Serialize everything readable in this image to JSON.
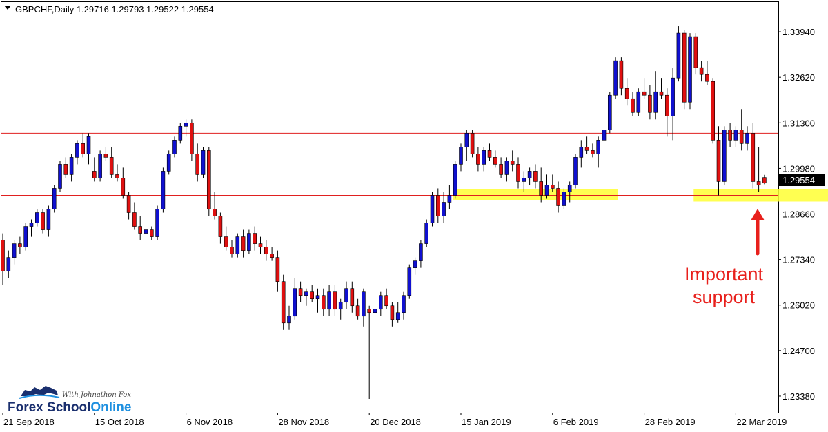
{
  "header": {
    "symbol_line": "GBPCHF,Daily  1.29716 1.29793 1.29522 1.29554"
  },
  "annotation": {
    "line1": "Important",
    "line2": "support"
  },
  "logo": {
    "tagline": "With Johnathon Fox",
    "word1": "Forex School",
    "word2": "Online"
  },
  "colors": {
    "bull": "#1010d0",
    "bear": "#e01010",
    "wick": "#000000",
    "level_line": "#e02020",
    "zone": "#ffff33",
    "annotation": "#e8201c",
    "logo_blue": "#1a2f6e",
    "logo_accent": "#1e90e0"
  },
  "chart_data": {
    "type": "candlestick",
    "symbol": "GBPCHF",
    "timeframe": "Daily",
    "current_price": "1.29554",
    "ylim": [
      1.229,
      1.348
    ],
    "y_ticks": [
      "1.33940",
      "1.32620",
      "1.31300",
      "1.29980",
      "1.28660",
      "1.27340",
      "1.26020",
      "1.24700",
      "1.23380"
    ],
    "x_ticks": [
      "21 Sep 2018",
      "15 Oct 2018",
      "6 Nov 2018",
      "28 Nov 2018",
      "20 Dec 2018",
      "15 Jan 2019",
      "6 Feb 2019",
      "28 Feb 2019",
      "22 Mar 2019"
    ],
    "x_tick_bar_index": [
      0,
      16,
      32,
      48,
      64,
      80,
      96,
      112,
      128
    ],
    "levels": [
      1.31,
      1.292
    ],
    "zones": [
      {
        "bar_start": 79,
        "bar_end": 107,
        "low": 1.2906,
        "high": 1.2937
      },
      {
        "bar_start": 121,
        "bar_end": 146,
        "low": 1.2902,
        "high": 1.2938
      }
    ],
    "candles": [
      [
        1.279,
        1.281,
        1.266,
        1.27
      ],
      [
        1.27,
        1.276,
        1.268,
        1.274
      ],
      [
        1.274,
        1.279,
        1.272,
        1.278
      ],
      [
        1.278,
        1.28,
        1.275,
        1.277
      ],
      [
        1.277,
        1.284,
        1.276,
        1.283
      ],
      [
        1.283,
        1.285,
        1.28,
        1.284
      ],
      [
        1.284,
        1.288,
        1.283,
        1.287
      ],
      [
        1.287,
        1.288,
        1.281,
        1.282
      ],
      [
        1.282,
        1.289,
        1.28,
        1.288
      ],
      [
        1.288,
        1.295,
        1.287,
        1.294
      ],
      [
        1.294,
        1.302,
        1.293,
        1.301
      ],
      [
        1.301,
        1.303,
        1.297,
        1.298
      ],
      [
        1.298,
        1.304,
        1.296,
        1.303
      ],
      [
        1.303,
        1.308,
        1.301,
        1.307
      ],
      [
        1.307,
        1.31,
        1.303,
        1.304
      ],
      [
        1.304,
        1.31,
        1.301,
        1.309
      ],
      [
        1.299,
        1.303,
        1.296,
        1.297
      ],
      [
        1.297,
        1.305,
        1.296,
        1.304
      ],
      [
        1.304,
        1.306,
        1.302,
        1.303
      ],
      [
        1.303,
        1.306,
        1.297,
        1.298
      ],
      [
        1.298,
        1.301,
        1.296,
        1.297
      ],
      [
        1.297,
        1.3,
        1.291,
        1.292
      ],
      [
        1.292,
        1.293,
        1.285,
        1.287
      ],
      [
        1.287,
        1.29,
        1.282,
        1.283
      ],
      [
        1.283,
        1.286,
        1.279,
        1.281
      ],
      [
        1.281,
        1.284,
        1.28,
        1.282
      ],
      [
        1.282,
        1.283,
        1.279,
        1.28
      ],
      [
        1.28,
        1.289,
        1.279,
        1.288
      ],
      [
        1.288,
        1.3,
        1.287,
        1.299
      ],
      [
        1.299,
        1.305,
        1.298,
        1.304
      ],
      [
        1.304,
        1.309,
        1.303,
        1.308
      ],
      [
        1.308,
        1.313,
        1.307,
        1.312
      ],
      [
        1.312,
        1.314,
        1.309,
        1.313
      ],
      [
        1.313,
        1.314,
        1.302,
        1.304
      ],
      [
        1.304,
        1.307,
        1.296,
        1.298
      ],
      [
        1.298,
        1.306,
        1.297,
        1.305
      ],
      [
        1.305,
        1.306,
        1.286,
        1.288
      ],
      [
        1.288,
        1.293,
        1.285,
        1.286
      ],
      [
        1.286,
        1.287,
        1.278,
        1.28
      ],
      [
        1.28,
        1.283,
        1.276,
        1.277
      ],
      [
        1.277,
        1.279,
        1.274,
        1.275
      ],
      [
        1.275,
        1.281,
        1.274,
        1.28
      ],
      [
        1.28,
        1.282,
        1.274,
        1.276
      ],
      [
        1.276,
        1.282,
        1.275,
        1.281
      ],
      [
        1.281,
        1.283,
        1.276,
        1.278
      ],
      [
        1.278,
        1.28,
        1.275,
        1.277
      ],
      [
        1.277,
        1.279,
        1.273,
        1.275
      ],
      [
        1.275,
        1.277,
        1.273,
        1.274
      ],
      [
        1.274,
        1.276,
        1.264,
        1.267
      ],
      [
        1.267,
        1.269,
        1.253,
        1.255
      ],
      [
        1.255,
        1.26,
        1.253,
        1.257
      ],
      [
        1.257,
        1.268,
        1.256,
        1.265
      ],
      [
        1.265,
        1.267,
        1.261,
        1.263
      ],
      [
        1.263,
        1.265,
        1.26,
        1.264
      ],
      [
        1.264,
        1.266,
        1.261,
        1.262
      ],
      [
        1.262,
        1.265,
        1.258,
        1.263
      ],
      [
        1.263,
        1.265,
        1.257,
        1.259
      ],
      [
        1.259,
        1.266,
        1.257,
        1.264
      ],
      [
        1.264,
        1.266,
        1.257,
        1.259
      ],
      [
        1.259,
        1.262,
        1.256,
        1.261
      ],
      [
        1.261,
        1.267,
        1.259,
        1.265
      ],
      [
        1.265,
        1.267,
        1.258,
        1.26
      ],
      [
        1.26,
        1.262,
        1.256,
        1.257
      ],
      [
        1.257,
        1.265,
        1.254,
        1.264
      ],
      [
        1.259,
        1.26,
        1.233,
        1.258
      ],
      [
        1.258,
        1.262,
        1.256,
        1.259
      ],
      [
        1.259,
        1.264,
        1.257,
        1.263
      ],
      [
        1.263,
        1.265,
        1.259,
        1.26
      ],
      [
        1.26,
        1.261,
        1.254,
        1.256
      ],
      [
        1.256,
        1.261,
        1.255,
        1.258
      ],
      [
        1.258,
        1.264,
        1.256,
        1.263
      ],
      [
        1.263,
        1.272,
        1.262,
        1.271
      ],
      [
        1.271,
        1.274,
        1.269,
        1.273
      ],
      [
        1.273,
        1.279,
        1.271,
        1.278
      ],
      [
        1.278,
        1.285,
        1.277,
        1.284
      ],
      [
        1.284,
        1.293,
        1.283,
        1.292
      ],
      [
        1.292,
        1.294,
        1.284,
        1.286
      ],
      [
        1.286,
        1.293,
        1.284,
        1.29
      ],
      [
        1.29,
        1.295,
        1.288,
        1.292
      ],
      [
        1.292,
        1.302,
        1.291,
        1.301
      ],
      [
        1.301,
        1.307,
        1.299,
        1.306
      ],
      [
        1.306,
        1.311,
        1.302,
        1.31
      ],
      [
        1.31,
        1.311,
        1.303,
        1.304
      ],
      [
        1.304,
        1.306,
        1.299,
        1.301
      ],
      [
        1.301,
        1.306,
        1.299,
        1.305
      ],
      [
        1.305,
        1.307,
        1.302,
        1.303
      ],
      [
        1.303,
        1.305,
        1.3,
        1.301
      ],
      [
        1.301,
        1.303,
        1.297,
        1.298
      ],
      [
        1.298,
        1.303,
        1.296,
        1.302
      ],
      [
        1.302,
        1.305,
        1.299,
        1.301
      ],
      [
        1.301,
        1.303,
        1.294,
        1.296
      ],
      [
        1.296,
        1.299,
        1.293,
        1.297
      ],
      [
        1.297,
        1.3,
        1.295,
        1.299
      ],
      [
        1.299,
        1.301,
        1.294,
        1.296
      ],
      [
        1.296,
        1.3,
        1.29,
        1.292
      ],
      [
        1.292,
        1.298,
        1.291,
        1.295
      ],
      [
        1.295,
        1.298,
        1.293,
        1.294
      ],
      [
        1.294,
        1.296,
        1.287,
        1.289
      ],
      [
        1.289,
        1.294,
        1.288,
        1.293
      ],
      [
        1.293,
        1.296,
        1.29,
        1.295
      ],
      [
        1.295,
        1.304,
        1.294,
        1.303
      ],
      [
        1.303,
        1.308,
        1.3,
        1.306
      ],
      [
        1.306,
        1.309,
        1.304,
        1.305
      ],
      [
        1.305,
        1.307,
        1.303,
        1.304
      ],
      [
        1.304,
        1.309,
        1.3,
        1.308
      ],
      [
        1.308,
        1.312,
        1.307,
        1.311
      ],
      [
        1.311,
        1.322,
        1.31,
        1.321
      ],
      [
        1.321,
        1.332,
        1.32,
        1.331
      ],
      [
        1.331,
        1.332,
        1.321,
        1.323
      ],
      [
        1.323,
        1.326,
        1.318,
        1.32
      ],
      [
        1.32,
        1.322,
        1.315,
        1.316
      ],
      [
        1.316,
        1.323,
        1.315,
        1.322
      ],
      [
        1.322,
        1.326,
        1.32,
        1.321
      ],
      [
        1.321,
        1.324,
        1.314,
        1.316
      ],
      [
        1.316,
        1.328,
        1.314,
        1.322
      ],
      [
        1.322,
        1.326,
        1.32,
        1.321
      ],
      [
        1.321,
        1.323,
        1.309,
        1.315
      ],
      [
        1.315,
        1.329,
        1.308,
        1.326
      ],
      [
        1.326,
        1.341,
        1.325,
        1.339
      ],
      [
        1.339,
        1.34,
        1.317,
        1.319
      ],
      [
        1.319,
        1.339,
        1.317,
        1.338
      ],
      [
        1.338,
        1.339,
        1.327,
        1.329
      ],
      [
        1.329,
        1.331,
        1.325,
        1.327
      ],
      [
        1.327,
        1.331,
        1.324,
        1.325
      ],
      [
        1.325,
        1.326,
        1.307,
        1.308
      ],
      [
        1.308,
        1.312,
        1.292,
        1.296
      ],
      [
        1.296,
        1.312,
        1.295,
        1.311
      ],
      [
        1.311,
        1.313,
        1.306,
        1.308
      ],
      [
        1.308,
        1.312,
        1.306,
        1.311
      ],
      [
        1.311,
        1.317,
        1.305,
        1.307
      ],
      [
        1.307,
        1.312,
        1.305,
        1.31
      ],
      [
        1.31,
        1.313,
        1.294,
        1.296
      ],
      [
        1.296,
        1.306,
        1.293,
        1.295
      ],
      [
        1.29716,
        1.29793,
        1.29522,
        1.29554
      ]
    ]
  }
}
